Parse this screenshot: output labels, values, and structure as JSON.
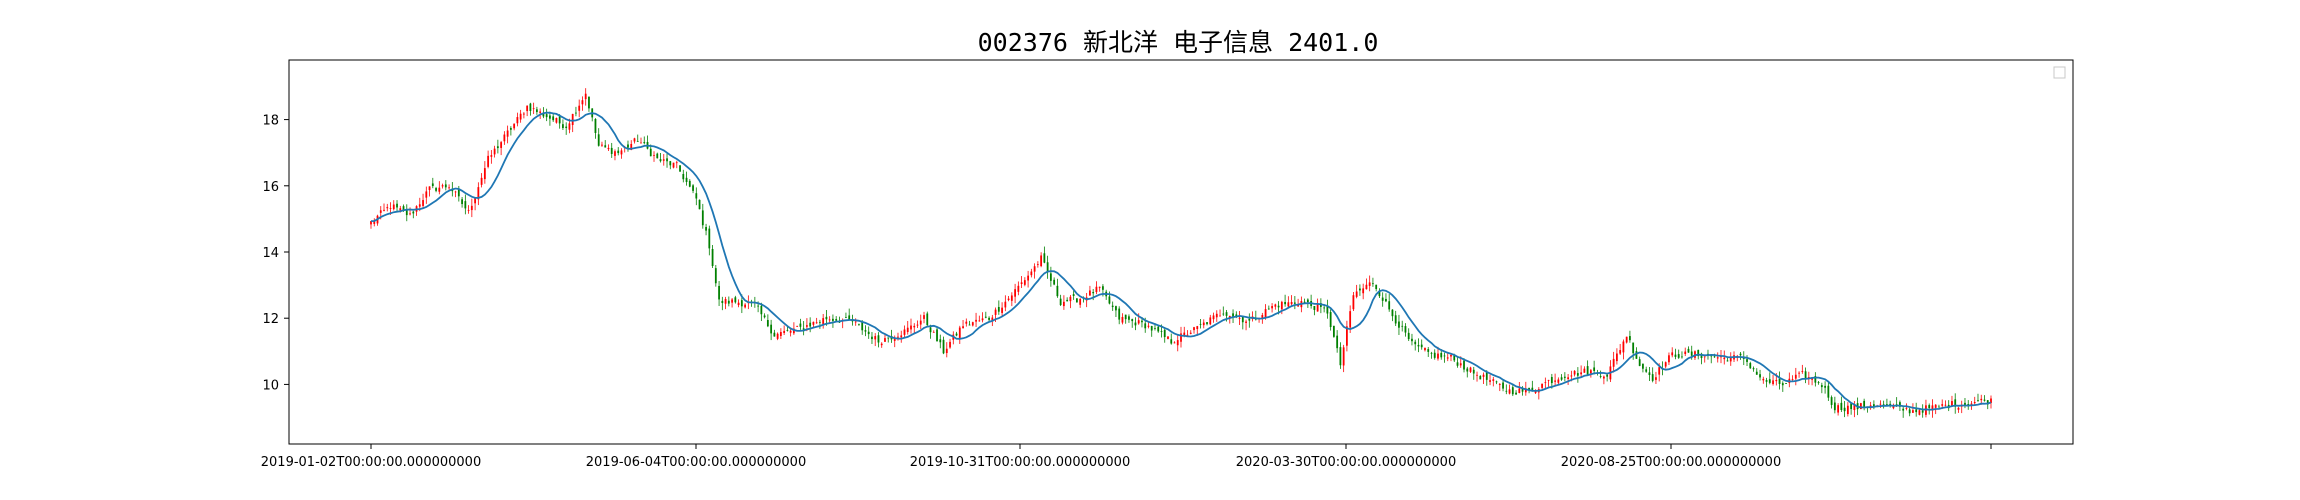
{
  "chart_data": {
    "type": "candlestick",
    "title": "002376 新北洋 电子信息 2401.0",
    "xlabel": "",
    "ylabel": "",
    "ylim": [
      8.2,
      19.8
    ],
    "grid": false,
    "legend": "top-right",
    "x_tick_labels": [
      "2019-01-02T00:00:00.000000000",
      "2019-06-04T00:00:00.000000000",
      "2019-10-31T00:00:00.000000000",
      "2020-03-30T00:00:00.000000000",
      "2020-08-25T00:00:00.000000000",
      ""
    ],
    "y_ticks": [
      10,
      12,
      14,
      16,
      18
    ],
    "colors": {
      "up": "#ff0000",
      "down": "#008000",
      "ma_line": "#1f77b4",
      "axes": "#000000"
    },
    "close_anchors": [
      [
        0,
        14.9
      ],
      [
        6,
        15.4
      ],
      [
        12,
        15.1
      ],
      [
        18,
        15.9
      ],
      [
        24,
        16.0
      ],
      [
        30,
        15.2
      ],
      [
        36,
        16.8
      ],
      [
        42,
        17.6
      ],
      [
        48,
        18.4
      ],
      [
        54,
        18.1
      ],
      [
        60,
        17.8
      ],
      [
        66,
        18.8
      ],
      [
        70,
        17.2
      ],
      [
        76,
        17.0
      ],
      [
        82,
        17.4
      ],
      [
        88,
        16.8
      ],
      [
        94,
        16.6
      ],
      [
        100,
        15.6
      ],
      [
        104,
        14.2
      ],
      [
        107,
        12.5
      ],
      [
        112,
        12.5
      ],
      [
        118,
        12.4
      ],
      [
        124,
        11.5
      ],
      [
        132,
        11.7
      ],
      [
        140,
        12.0
      ],
      [
        148,
        11.9
      ],
      [
        156,
        11.3
      ],
      [
        164,
        11.6
      ],
      [
        170,
        12.0
      ],
      [
        176,
        11.0
      ],
      [
        182,
        11.8
      ],
      [
        190,
        12.0
      ],
      [
        196,
        12.6
      ],
      [
        202,
        13.3
      ],
      [
        206,
        13.8
      ],
      [
        212,
        12.5
      ],
      [
        218,
        12.6
      ],
      [
        224,
        12.9
      ],
      [
        230,
        12.0
      ],
      [
        238,
        11.8
      ],
      [
        246,
        11.3
      ],
      [
        254,
        11.7
      ],
      [
        262,
        12.2
      ],
      [
        270,
        11.9
      ],
      [
        278,
        12.4
      ],
      [
        286,
        12.5
      ],
      [
        294,
        12.2
      ],
      [
        298,
        10.6
      ],
      [
        302,
        12.7
      ],
      [
        308,
        13.1
      ],
      [
        314,
        12.1
      ],
      [
        320,
        11.2
      ],
      [
        326,
        10.9
      ],
      [
        332,
        10.8
      ],
      [
        338,
        10.4
      ],
      [
        344,
        10.1
      ],
      [
        350,
        9.8
      ],
      [
        356,
        9.8
      ],
      [
        362,
        10.1
      ],
      [
        368,
        10.3
      ],
      [
        374,
        10.4
      ],
      [
        380,
        10.3
      ],
      [
        386,
        11.5
      ],
      [
        390,
        10.6
      ],
      [
        394,
        10.2
      ],
      [
        400,
        10.9
      ],
      [
        408,
        10.9
      ],
      [
        416,
        10.8
      ],
      [
        422,
        10.8
      ],
      [
        428,
        10.1
      ],
      [
        434,
        10.0
      ],
      [
        440,
        10.3
      ],
      [
        446,
        10.0
      ],
      [
        450,
        9.3
      ],
      [
        456,
        9.3
      ],
      [
        462,
        9.4
      ],
      [
        468,
        9.3
      ],
      [
        474,
        9.2
      ],
      [
        480,
        9.3
      ],
      [
        486,
        9.4
      ],
      [
        490,
        9.4
      ],
      [
        494,
        9.5
      ],
      [
        498,
        9.5
      ]
    ]
  }
}
